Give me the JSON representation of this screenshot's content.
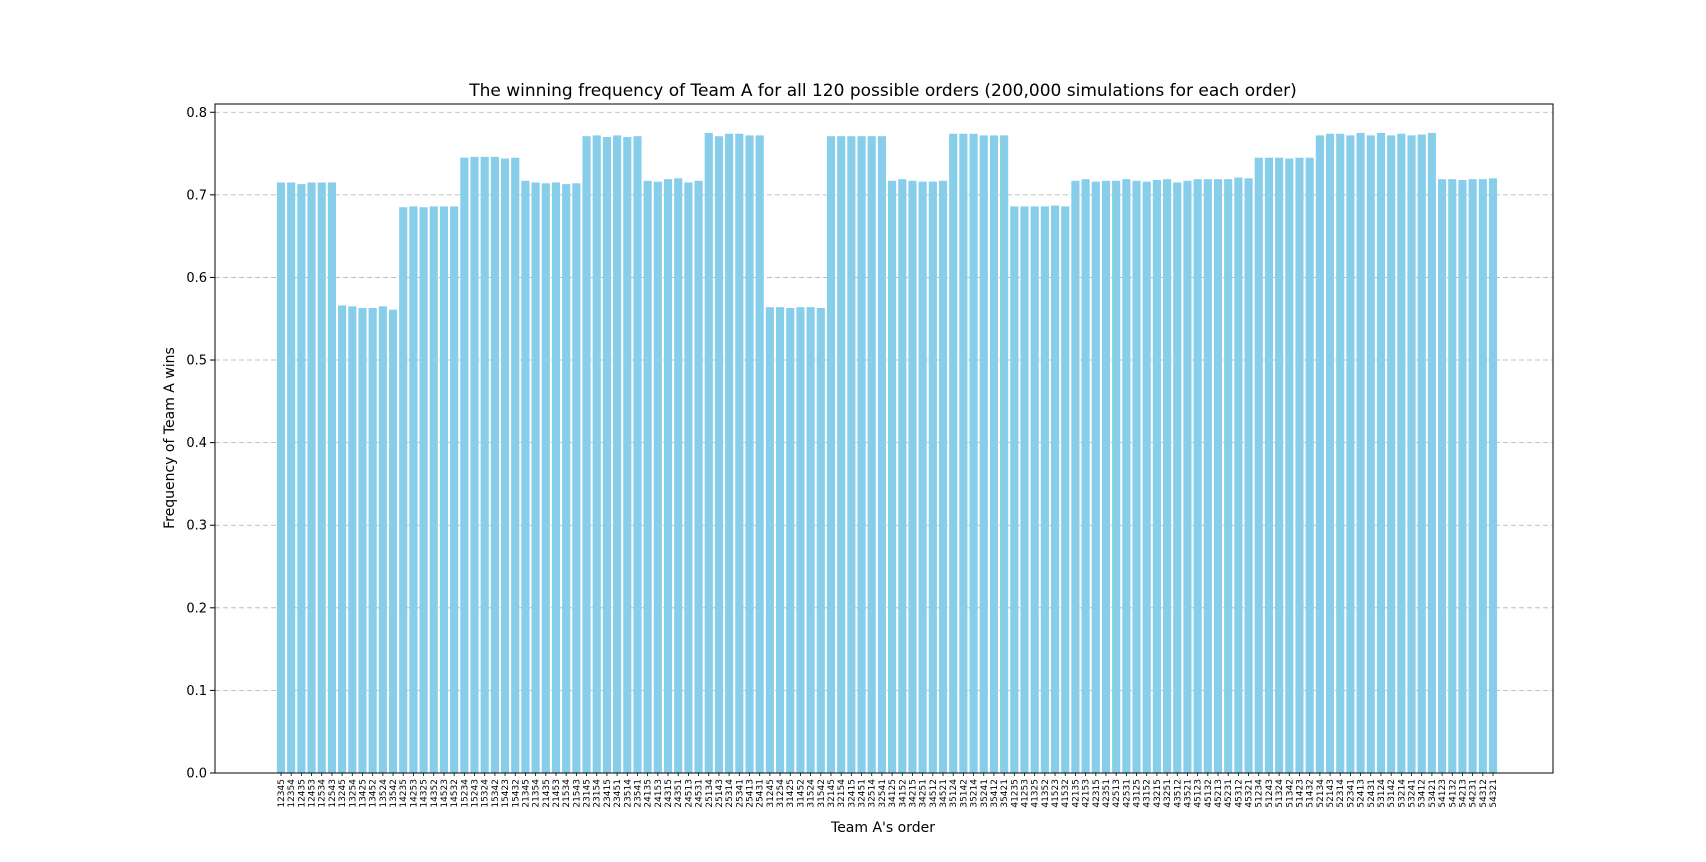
{
  "chart_data": {
    "type": "bar",
    "title": "The winning frequency of Team A for all 120 possible orders (200,000 simulations for each order)",
    "xlabel": "Team A's order",
    "ylabel": "Frequency of Team A wins",
    "ylim": [
      0,
      0.81
    ],
    "yticks": [
      "0.0",
      "0.1",
      "0.2",
      "0.3",
      "0.4",
      "0.5",
      "0.6",
      "0.7",
      "0.8"
    ],
    "grid": "y-dashed",
    "bar_color": "#87CEEB",
    "grid_color": "#b0b0b0",
    "categories": [
      "12345",
      "12354",
      "12435",
      "12453",
      "12534",
      "12543",
      "13245",
      "13254",
      "13425",
      "13452",
      "13524",
      "13542",
      "14235",
      "14253",
      "14325",
      "14352",
      "14523",
      "14532",
      "15234",
      "15243",
      "15324",
      "15342",
      "15423",
      "15432",
      "21345",
      "21354",
      "21435",
      "21453",
      "21534",
      "21543",
      "23145",
      "23154",
      "23415",
      "23451",
      "23514",
      "23541",
      "24135",
      "24153",
      "24315",
      "24351",
      "24513",
      "24531",
      "25134",
      "25143",
      "25314",
      "25341",
      "25413",
      "25431",
      "31245",
      "31254",
      "31425",
      "31452",
      "31524",
      "31542",
      "32145",
      "32154",
      "32415",
      "32451",
      "32514",
      "32541",
      "34125",
      "34152",
      "34215",
      "34251",
      "34512",
      "34521",
      "35124",
      "35142",
      "35214",
      "35241",
      "35412",
      "35421",
      "41235",
      "41253",
      "41325",
      "41352",
      "41523",
      "41532",
      "42135",
      "42153",
      "42315",
      "42351",
      "42513",
      "42531",
      "43125",
      "43152",
      "43215",
      "43251",
      "43512",
      "43521",
      "45123",
      "45132",
      "45213",
      "45231",
      "45312",
      "45321",
      "51234",
      "51243",
      "51324",
      "51342",
      "51423",
      "51432",
      "52134",
      "52143",
      "52314",
      "52341",
      "52413",
      "52431",
      "53124",
      "53142",
      "53214",
      "53241",
      "53412",
      "53421",
      "54123",
      "54132",
      "54213",
      "54231",
      "54312",
      "54321"
    ],
    "values": [
      0.715,
      0.715,
      0.713,
      0.715,
      0.715,
      0.715,
      0.566,
      0.565,
      0.563,
      0.563,
      0.565,
      0.561,
      0.685,
      0.686,
      0.685,
      0.686,
      0.686,
      0.686,
      0.745,
      0.746,
      0.746,
      0.746,
      0.744,
      0.745,
      0.717,
      0.715,
      0.714,
      0.715,
      0.713,
      0.714,
      0.771,
      0.772,
      0.77,
      0.772,
      0.77,
      0.771,
      0.717,
      0.716,
      0.719,
      0.72,
      0.715,
      0.717,
      0.775,
      0.771,
      0.774,
      0.774,
      0.772,
      0.772,
      0.564,
      0.564,
      0.563,
      0.564,
      0.564,
      0.563,
      0.771,
      0.771,
      0.771,
      0.771,
      0.771,
      0.771,
      0.717,
      0.719,
      0.717,
      0.716,
      0.716,
      0.717,
      0.774,
      0.774,
      0.774,
      0.772,
      0.772,
      0.772,
      0.686,
      0.686,
      0.686,
      0.686,
      0.687,
      0.686,
      0.717,
      0.719,
      0.716,
      0.717,
      0.717,
      0.719,
      0.717,
      0.716,
      0.718,
      0.719,
      0.715,
      0.717,
      0.719,
      0.719,
      0.719,
      0.719,
      0.721,
      0.72,
      0.745,
      0.745,
      0.745,
      0.744,
      0.745,
      0.745,
      0.772,
      0.774,
      0.774,
      0.772,
      0.775,
      0.772,
      0.775,
      0.772,
      0.774,
      0.772,
      0.773,
      0.775,
      0.719,
      0.719,
      0.718,
      0.719,
      0.719,
      0.72
    ]
  }
}
